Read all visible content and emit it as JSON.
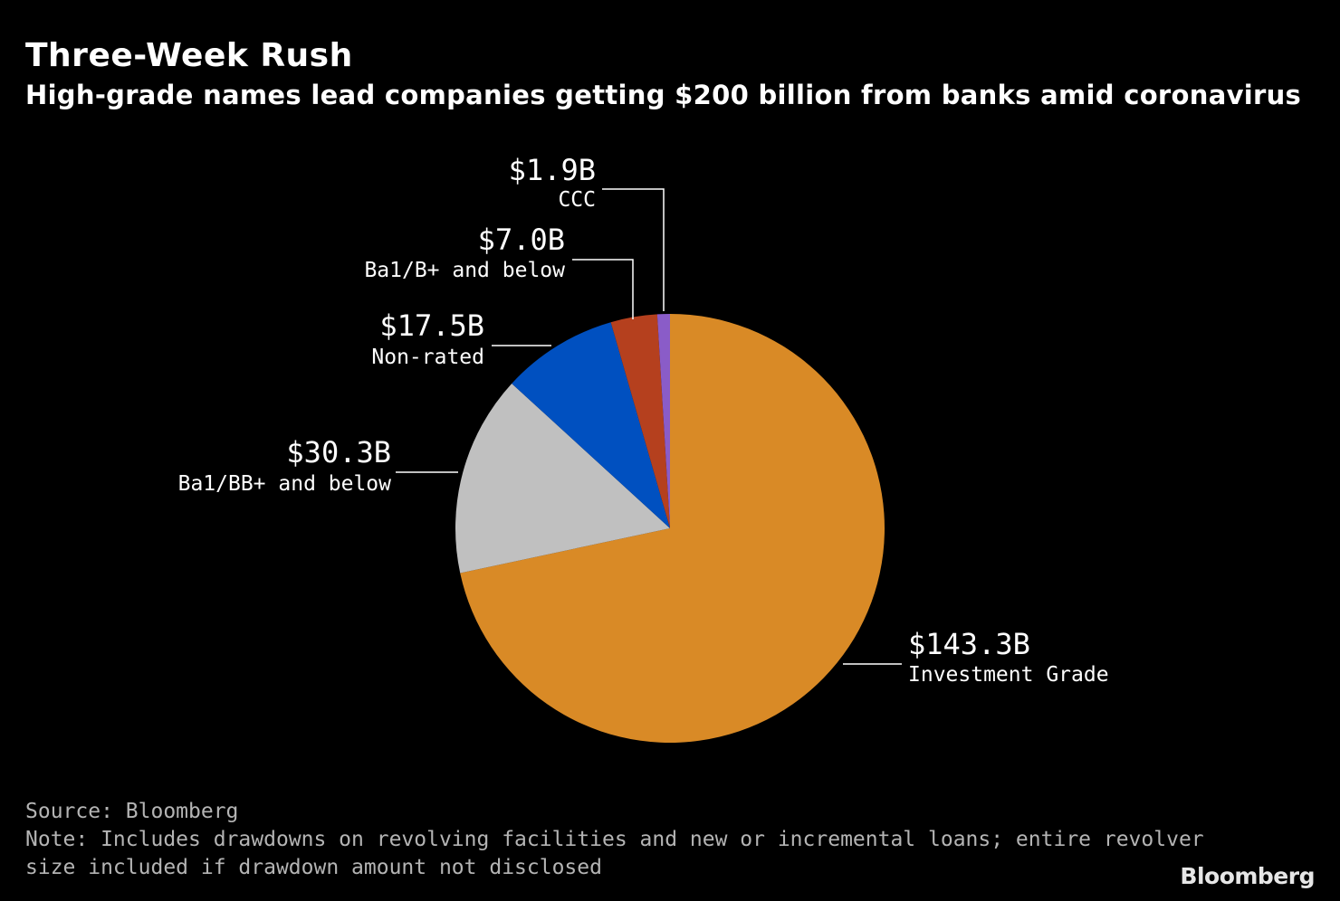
{
  "header": {
    "title": "Three-Week Rush",
    "subtitle": "High-grade names lead companies getting $200 billion from banks amid coronavirus"
  },
  "chart_data": {
    "type": "pie",
    "title": "Three-Week Rush",
    "subtitle": "High-grade names lead companies getting $200 billion from banks amid coronavirus",
    "units": "USD billions",
    "start": "12 o'clock, clockwise",
    "slices": [
      {
        "name": "Investment Grade",
        "value": 143.3,
        "label": "$143.3B",
        "color": "#d98a26"
      },
      {
        "name": "Ba1/BB+ and below",
        "value": 30.3,
        "label": "$30.3B",
        "color": "#c0c0c0"
      },
      {
        "name": "Non-rated",
        "value": 17.5,
        "label": "$17.5B",
        "color": "#0050c0"
      },
      {
        "name": "Ba1/B+ and below",
        "value": 7.0,
        "label": "$7.0B",
        "color": "#b5401e"
      },
      {
        "name": "CCC",
        "value": 1.9,
        "label": "$1.9B",
        "color": "#8a5cc8"
      }
    ]
  },
  "footer": {
    "source": "Source: Bloomberg",
    "note_line1": "Note: Includes drawdowns on revolving facilities and new or incremental loans; entire revolver",
    "note_line2": "size included if drawdown amount not disclosed",
    "brand": "Bloomberg"
  }
}
